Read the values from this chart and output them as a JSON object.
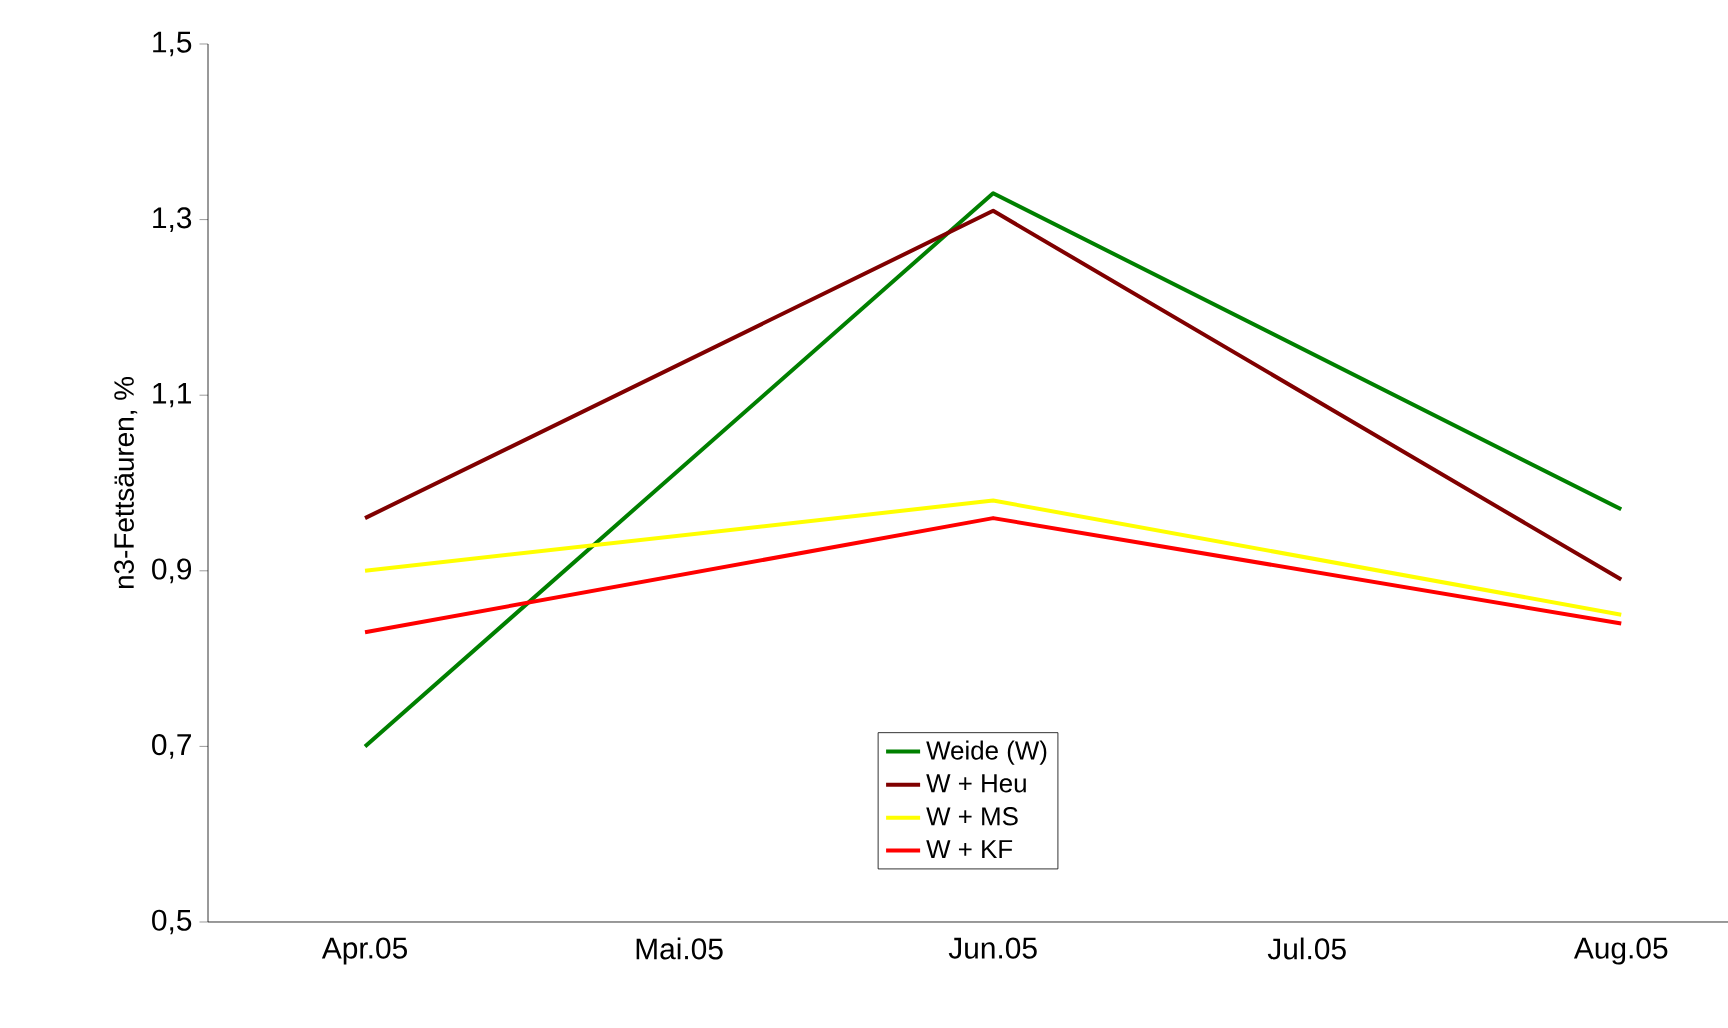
{
  "chart_data": {
    "type": "line",
    "ylabel": "n3-Fettsäuren, %",
    "categories": [
      "Apr.05",
      "Mai.05",
      "Jun.05",
      "Jul.05",
      "Aug.05"
    ],
    "series": [
      {
        "name": "Weide (W)",
        "color": "#008000",
        "values": [
          0.7,
          null,
          1.33,
          null,
          0.97
        ]
      },
      {
        "name": "W + Heu",
        "color": "#800000",
        "values": [
          0.96,
          null,
          1.31,
          null,
          0.89
        ]
      },
      {
        "name": "W + MS",
        "color": "#ffff00",
        "values": [
          0.9,
          null,
          0.98,
          null,
          0.85
        ]
      },
      {
        "name": "W + KF",
        "color": "#ff0000",
        "values": [
          0.83,
          null,
          0.96,
          null,
          0.84
        ]
      }
    ],
    "ylim": [
      0.5,
      1.5
    ],
    "yticks": [
      {
        "value": 0.5,
        "label": "0,5"
      },
      {
        "value": 0.7,
        "label": "0,7"
      },
      {
        "value": 0.9,
        "label": "0,9"
      },
      {
        "value": 1.1,
        "label": "1,1"
      },
      {
        "value": 1.3,
        "label": "1,3"
      },
      {
        "value": 1.5,
        "label": "1,5"
      }
    ],
    "legend": "bottom",
    "grid": false,
    "marker": "none",
    "line_style": "solid"
  }
}
